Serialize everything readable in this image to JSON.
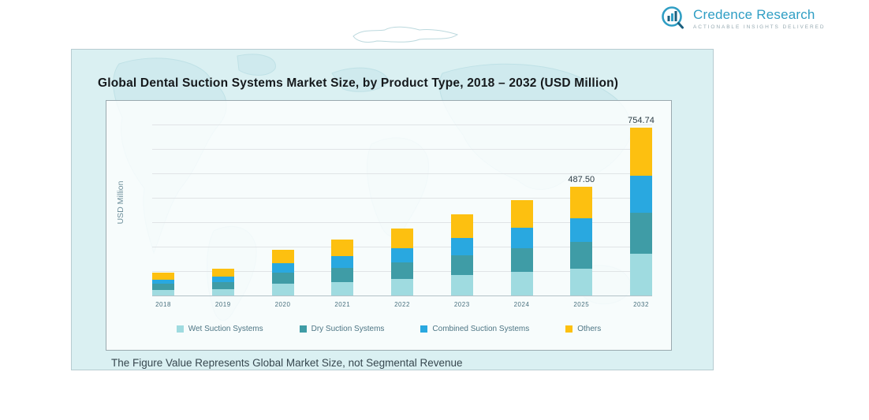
{
  "logo": {
    "brand": "Credence Research",
    "tagline": "ACTIONABLE INSIGHTS DELIVERED"
  },
  "panel": {
    "note": "The Figure Value Represents Global Market Size, not Segmental Revenue"
  },
  "chart_data": {
    "type": "bar",
    "stacked": true,
    "title": "Global Dental Suction Systems Market Size, by Product Type, 2018 – 2032 (USD Million)",
    "xlabel": "",
    "ylabel": "USD Million",
    "ylim": [
      0,
      800
    ],
    "grid": "horizontal",
    "legend_position": "bottom",
    "categories": [
      "2018",
      "2019",
      "2020",
      "2021",
      "2022",
      "2023",
      "2024",
      "2025",
      "2032"
    ],
    "series": [
      {
        "name": "Wet Suction Systems",
        "color": "#9fdbe0",
        "values": [
          26,
          30,
          52,
          62,
          76,
          92,
          108,
          122,
          188
        ]
      },
      {
        "name": "Dry Suction Systems",
        "color": "#3f9ca6",
        "values": [
          26,
          29,
          50,
          61,
          73,
          89,
          104,
          118,
          183
        ]
      },
      {
        "name": "Combined Suction Systems",
        "color": "#29a8e0",
        "values": [
          21,
          25,
          44,
          54,
          64,
          79,
          94,
          107.5,
          167
        ]
      },
      {
        "name": "Others",
        "color": "#fdc010",
        "values": [
          32,
          36,
          59,
          73,
          87,
          105,
          124,
          140,
          216.74
        ]
      }
    ],
    "totals": [
      105,
      120,
      205,
      250,
      300,
      365,
      430,
      487.5,
      754.74
    ],
    "labels": [
      "",
      "",
      "",
      "",
      "",
      "",
      "",
      "487.50",
      "754.74"
    ]
  }
}
